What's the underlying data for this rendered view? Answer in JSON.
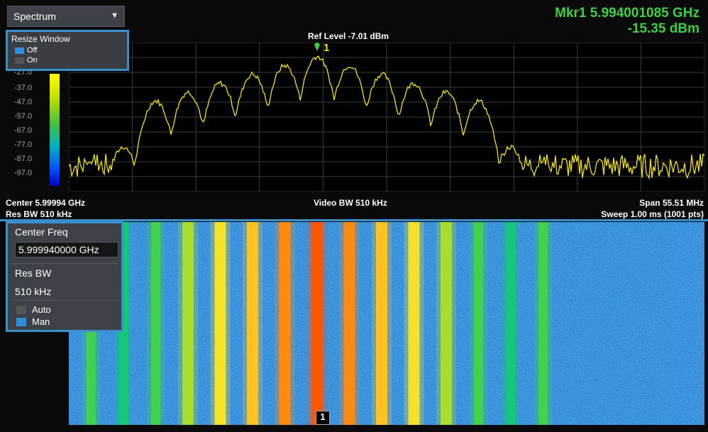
{
  "mode": {
    "label": "Spectrum",
    "caret_icon": "chevron-down-icon"
  },
  "marker_readout": {
    "frequency": "Mkr1 5.994001085 GHz",
    "amplitude": "-15.35 dBm",
    "color": "#3fcf45"
  },
  "ref_level": "Ref Level -7.01 dBm",
  "resize_window": {
    "title": "Resize Window",
    "options": [
      {
        "label": "Off",
        "selected": true
      },
      {
        "label": "On",
        "selected": false
      }
    ]
  },
  "scale_labels": [
    "-27.0",
    "-37.0",
    "-47.0",
    "-57.0",
    "-67.0",
    "-77.0",
    "-87.0",
    "-97.0"
  ],
  "marker_number": "1",
  "bottom_info": {
    "center": "Center 5.99994 GHz",
    "res_bw": "Res BW 510 kHz",
    "video_bw": "Video BW 510 kHz",
    "span": "Span 55.51 MHz",
    "sweep": "Sweep 1.00 ms (1001 pts)"
  },
  "center_freq_panel": {
    "title": "Center Freq",
    "value": "5.999940000 GHz"
  },
  "res_bw_panel": {
    "title": "Res BW",
    "value": "510 kHz",
    "options": [
      {
        "label": "Auto",
        "selected": false
      },
      {
        "label": "Man",
        "selected": true
      }
    ]
  },
  "waterfall_marker": "1",
  "colors": {
    "trace": "#f2e21b",
    "accent": "#3a8fc8",
    "grid": "#3b3b3b"
  }
}
